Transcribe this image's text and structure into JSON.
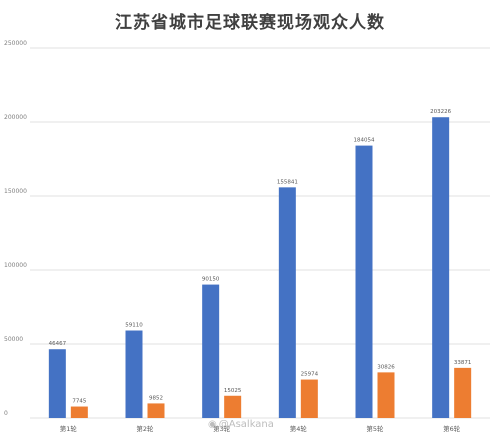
{
  "page": {
    "watermark": "@Asalkana"
  },
  "chart_data": {
    "type": "bar",
    "title": "江苏省城市足球联赛现场观众人数",
    "xlabel": "",
    "ylabel": "",
    "ylim": [
      0,
      250000
    ],
    "yticks": [
      0,
      50000,
      100000,
      150000,
      200000,
      250000
    ],
    "grid": true,
    "legend": "none",
    "categories": [
      "第1轮",
      "第2轮",
      "第3轮",
      "第4轮",
      "第5轮",
      "第6轮"
    ],
    "series": [
      {
        "color": "#4472C4",
        "values": [
          46467,
          59110,
          90150,
          155841,
          184054,
          203226
        ]
      },
      {
        "color": "#ED7D31",
        "values": [
          7745,
          9852,
          15025,
          25974,
          30826,
          33871
        ]
      }
    ]
  }
}
